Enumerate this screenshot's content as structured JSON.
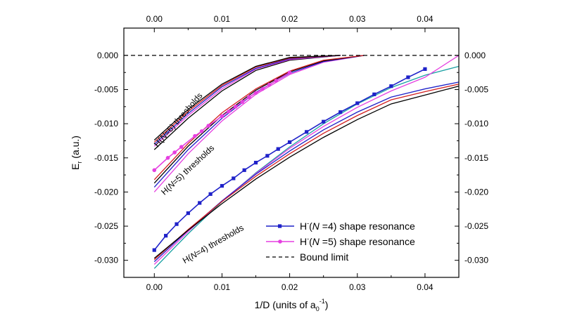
{
  "chart_data": {
    "type": "line",
    "xlabel": "1/D (units of a",
    "xlabel_sub": "0",
    "xlabel_sup": "-1",
    "xlabel_tail": ")",
    "ylabel": "E",
    "ylabel_sub": "r",
    "ylabel_tail": " (a.u.)",
    "xlim": [
      -0.0045,
      0.045
    ],
    "ylim": [
      -0.0325,
      0.004
    ],
    "x_ticks": [
      0.0,
      0.01,
      0.02,
      0.03,
      0.04
    ],
    "x_tick_labels": [
      "0.00",
      "0.01",
      "0.02",
      "0.03",
      "0.04"
    ],
    "y_ticks": [
      0.0,
      -0.005,
      -0.01,
      -0.015,
      -0.02,
      -0.025,
      -0.03
    ],
    "y_tick_labels": [
      "0.000",
      "-0.005",
      "-0.010",
      "-0.015",
      "-0.020",
      "-0.025",
      "-0.030"
    ],
    "grid": false,
    "legend_position": "bottom-right",
    "annotations": [
      {
        "prefix": "H(",
        "italic": "N",
        "suffix": "=6) thresholds",
        "x": 0.0005,
        "y": -0.0135,
        "angle_deg": -49
      },
      {
        "prefix": "H(",
        "italic": "N",
        "suffix": "=5) thresholds",
        "x": 0.0015,
        "y": -0.0205,
        "angle_deg": -43
      },
      {
        "prefix": "H(",
        "italic": "N",
        "suffix": "=4) thresholds",
        "x": 0.0045,
        "y": -0.0305,
        "angle_deg": -30
      }
    ],
    "series": [
      {
        "name": "H(N=4) shape resonance",
        "legend_prefix": "H",
        "legend_sup": "-",
        "legend_mid": "(",
        "legend_italic": "N",
        "legend_suffix": " =4) shape resonance",
        "color": "#1f22c9",
        "marker": "square",
        "x": [
          0.0,
          0.0017,
          0.0033,
          0.005,
          0.0067,
          0.0083,
          0.01,
          0.0117,
          0.0133,
          0.015,
          0.0167,
          0.0183,
          0.02,
          0.0225,
          0.025,
          0.0275,
          0.03,
          0.0325,
          0.035,
          0.0375,
          0.04
        ],
        "y": [
          -0.0285,
          -0.0264,
          -0.0247,
          -0.0231,
          -0.0216,
          -0.0203,
          -0.0191,
          -0.018,
          -0.0168,
          -0.0157,
          -0.0147,
          -0.0137,
          -0.0127,
          -0.0112,
          -0.0097,
          -0.0083,
          -0.007,
          -0.0057,
          -0.0045,
          -0.0032,
          -0.002
        ]
      },
      {
        "name": "H(N=5) shape resonance",
        "legend_prefix": "H",
        "legend_sup": "-",
        "legend_mid": "(",
        "legend_italic": "N",
        "legend_suffix": " =5) shape resonance",
        "color": "#e53fe0",
        "marker": "circle",
        "x": [
          0.0,
          0.002,
          0.003,
          0.004,
          0.006,
          0.007,
          0.008,
          0.01,
          0.011,
          0.012,
          0.013,
          0.014,
          0.015,
          0.016,
          0.017,
          0.018,
          0.02
        ],
        "y": [
          -0.0168,
          -0.015,
          -0.0142,
          -0.0134,
          -0.0118,
          -0.0111,
          -0.0103,
          -0.0089,
          -0.0082,
          -0.0075,
          -0.0068,
          -0.0061,
          -0.0055,
          -0.0049,
          -0.0043,
          -0.0037,
          -0.0025
        ]
      },
      {
        "name": "Bound limit",
        "color": "#000000",
        "dashed": true,
        "x": [
          -0.0045,
          0.045
        ],
        "y": [
          0.0,
          0.0
        ]
      }
    ],
    "threshold_curves": [
      {
        "group": "N=6",
        "color": "#000000",
        "x": [
          0.0,
          0.005,
          0.01,
          0.015,
          0.02,
          0.0275
        ],
        "y": [
          -0.0138,
          -0.0092,
          -0.0052,
          -0.0022,
          -0.0007,
          0.0
        ]
      },
      {
        "group": "N=6",
        "color": "#e53fe0",
        "x": [
          0.0,
          0.005,
          0.01,
          0.015,
          0.02,
          0.0275
        ],
        "y": [
          -0.0133,
          -0.0088,
          -0.0049,
          -0.002,
          -0.0006,
          0.0
        ]
      },
      {
        "group": "N=6",
        "color": "#1f22c9",
        "x": [
          0.0,
          0.005,
          0.01,
          0.015,
          0.02,
          0.0275
        ],
        "y": [
          -0.013,
          -0.0085,
          -0.0046,
          -0.0019,
          -0.0005,
          0.0
        ]
      },
      {
        "group": "N=6",
        "color": "#d31f1f",
        "x": [
          0.0,
          0.005,
          0.01,
          0.015,
          0.02,
          0.0275
        ],
        "y": [
          -0.0127,
          -0.0082,
          -0.0044,
          -0.0017,
          -0.0004,
          0.0
        ]
      },
      {
        "group": "N=6",
        "color": "#000000",
        "x": [
          0.0,
          0.005,
          0.01,
          0.015,
          0.02,
          0.0275
        ],
        "y": [
          -0.0124,
          -0.0079,
          -0.0042,
          -0.0016,
          -0.0003,
          0.0
        ]
      },
      {
        "group": "N=5",
        "color": "#e53fe0",
        "x": [
          0.0,
          0.005,
          0.01,
          0.015,
          0.02,
          0.025,
          0.031
        ],
        "y": [
          -0.02,
          -0.0144,
          -0.0096,
          -0.0057,
          -0.0028,
          -0.001,
          0.0
        ]
      },
      {
        "group": "N=5",
        "color": "#1f22c9",
        "x": [
          0.0,
          0.005,
          0.01,
          0.015,
          0.02,
          0.025,
          0.031
        ],
        "y": [
          -0.0193,
          -0.0138,
          -0.0092,
          -0.0054,
          -0.0026,
          -0.0009,
          0.0
        ]
      },
      {
        "group": "N=5",
        "color": "#000000",
        "x": [
          0.0,
          0.005,
          0.01,
          0.015,
          0.02,
          0.025,
          0.031
        ],
        "y": [
          -0.0187,
          -0.0133,
          -0.0088,
          -0.0051,
          -0.0024,
          -0.0008,
          0.0
        ]
      },
      {
        "group": "N=5",
        "color": "#d31f1f",
        "x": [
          0.0,
          0.005,
          0.01,
          0.015,
          0.02,
          0.025,
          0.031
        ],
        "y": [
          -0.0182,
          -0.0129,
          -0.0084,
          -0.0049,
          -0.0023,
          -0.0007,
          0.0
        ]
      },
      {
        "group": "N=4",
        "color": "#19a0a3",
        "x": [
          0.0,
          0.005,
          0.01,
          0.015,
          0.02,
          0.025,
          0.03,
          0.035,
          0.04,
          0.045
        ],
        "y": [
          -0.0312,
          -0.0261,
          -0.0214,
          -0.0172,
          -0.0134,
          -0.01,
          -0.0071,
          -0.0047,
          -0.0029,
          -0.0016
        ]
      },
      {
        "group": "N=4",
        "color": "#e53fe0",
        "x": [
          0.0,
          0.005,
          0.01,
          0.015,
          0.02,
          0.025,
          0.03,
          0.035,
          0.04,
          0.045
        ],
        "y": [
          -0.0306,
          -0.0258,
          -0.0213,
          -0.0173,
          -0.0136,
          -0.0104,
          -0.0076,
          -0.0052,
          -0.0032,
          0.0
        ]
      },
      {
        "group": "N=4",
        "color": "#1f22c9",
        "x": [
          0.0,
          0.005,
          0.01,
          0.015,
          0.02,
          0.025,
          0.03,
          0.035,
          0.04,
          0.045
        ],
        "y": [
          -0.0302,
          -0.0256,
          -0.0213,
          -0.0174,
          -0.014,
          -0.0109,
          -0.0083,
          -0.0061,
          -0.0049,
          -0.0039
        ]
      },
      {
        "group": "N=4",
        "color": "#d31f1f",
        "x": [
          0.0,
          0.005,
          0.01,
          0.015,
          0.02,
          0.025,
          0.03,
          0.035,
          0.04,
          0.045
        ],
        "y": [
          -0.0299,
          -0.0255,
          -0.0214,
          -0.0177,
          -0.0144,
          -0.0114,
          -0.0088,
          -0.0065,
          -0.0053,
          -0.0042
        ]
      },
      {
        "group": "N=4",
        "color": "#000000",
        "x": [
          0.0,
          0.005,
          0.01,
          0.015,
          0.02,
          0.025,
          0.03,
          0.035,
          0.04,
          0.045
        ],
        "y": [
          -0.0297,
          -0.0256,
          -0.0217,
          -0.0181,
          -0.0149,
          -0.012,
          -0.0094,
          -0.0071,
          -0.0058,
          -0.0045
        ]
      }
    ]
  }
}
